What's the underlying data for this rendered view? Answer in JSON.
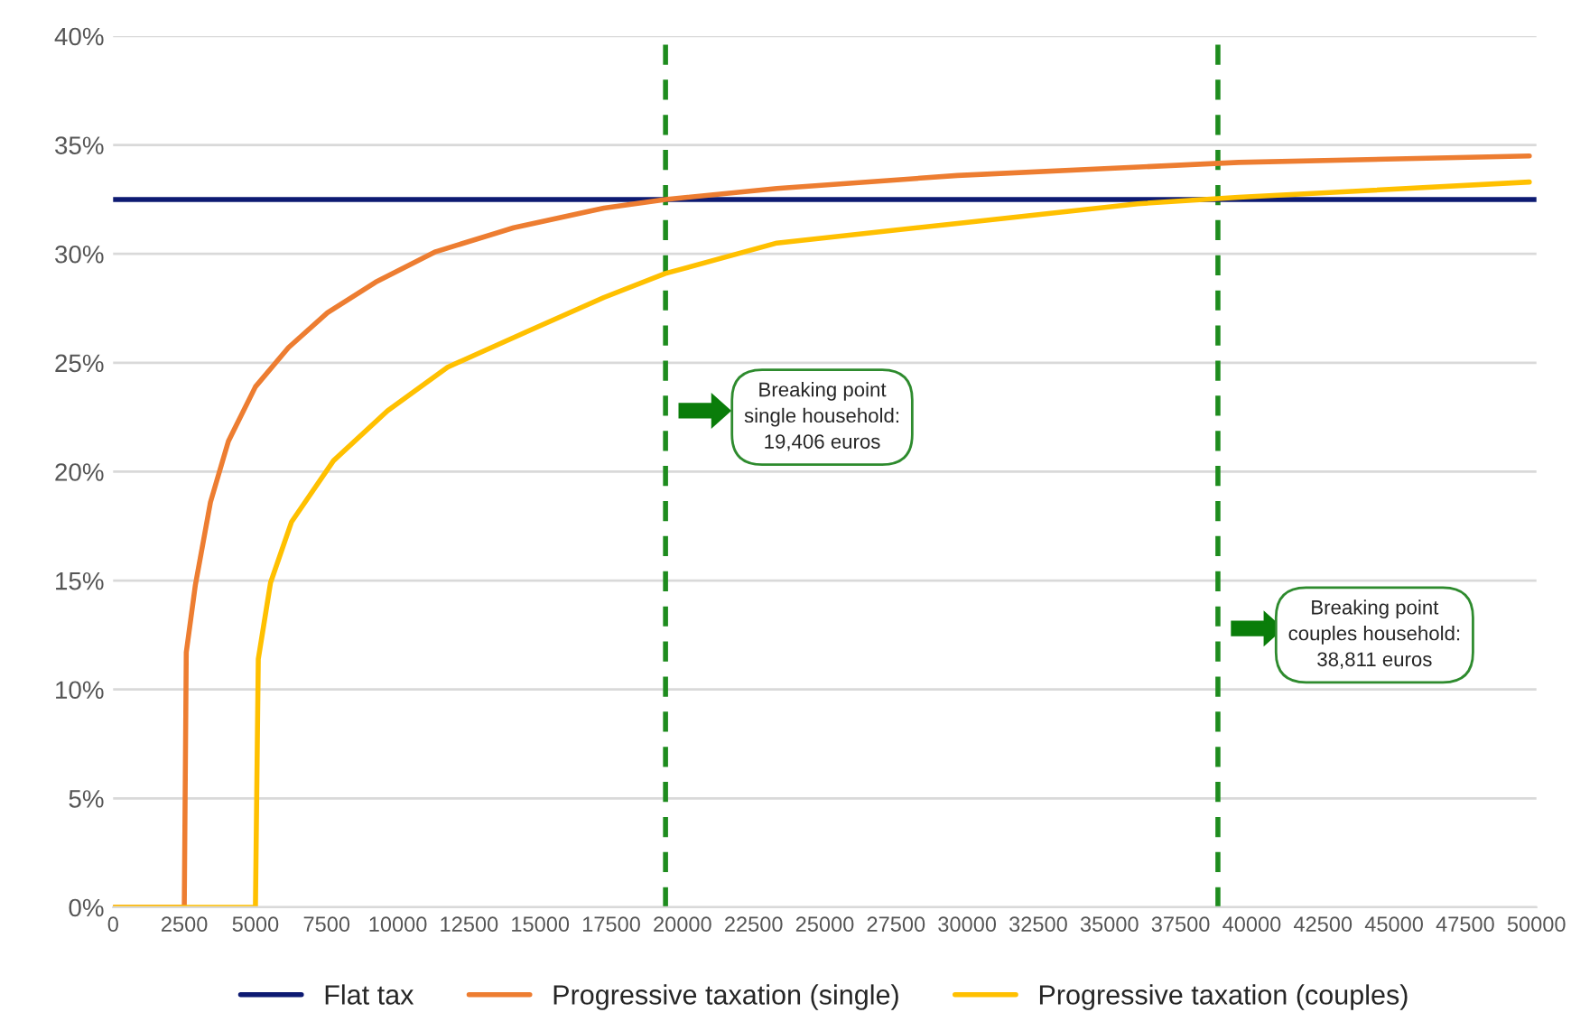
{
  "chart_data": {
    "type": "line",
    "xlim": [
      0,
      50000
    ],
    "xticks": [
      0,
      2500,
      5000,
      7500,
      10000,
      12500,
      15000,
      17500,
      20000,
      22500,
      25000,
      27500,
      30000,
      32500,
      35000,
      37500,
      40000,
      42500,
      45000,
      47500,
      50000
    ],
    "ylim": [
      0,
      40
    ],
    "yticks": [
      {
        "value": 0,
        "label": "0%"
      },
      {
        "value": 5,
        "label": "5%"
      },
      {
        "value": 10,
        "label": "10%"
      },
      {
        "value": 15,
        "label": "15%"
      },
      {
        "value": 20,
        "label": "20%"
      },
      {
        "value": 25,
        "label": "25%"
      },
      {
        "value": 30,
        "label": "30%"
      },
      {
        "value": 35,
        "label": "35%"
      },
      {
        "value": 40,
        "label": "40%"
      }
    ],
    "grid": "y",
    "legend": "bottom",
    "marker": "none",
    "line_style": "solid",
    "series": [
      {
        "name": "Flat tax",
        "color": "#0d1a72",
        "x": [
          0,
          50000
        ],
        "values": [
          32.5,
          32.5
        ]
      },
      {
        "name": "Progressive taxation (single)",
        "color": "#ed7d31",
        "x": [
          0,
          2500,
          2570,
          2890,
          3420,
          4050,
          5000,
          6160,
          7530,
          9220,
          11330,
          14070,
          17240,
          19400,
          23320,
          29660,
          39540,
          49750
        ],
        "values": [
          0,
          0,
          11.7,
          14.8,
          18.6,
          21.4,
          23.9,
          25.7,
          27.3,
          28.7,
          30.1,
          31.2,
          32.1,
          32.5,
          33.0,
          33.6,
          34.2,
          34.5
        ]
      },
      {
        "name": "Progressive taxation (couples)",
        "color": "#ffc000",
        "x": [
          0,
          5000,
          5100,
          5530,
          6270,
          7740,
          9640,
          11750,
          14490,
          17240,
          19400,
          23320,
          29660,
          35990,
          39540,
          49750
        ],
        "values": [
          0,
          0,
          11.4,
          14.9,
          17.7,
          20.5,
          22.8,
          24.8,
          26.4,
          28.0,
          29.1,
          30.5,
          31.4,
          32.3,
          32.6,
          33.3
        ]
      }
    ],
    "ref_lines": [
      {
        "axis": "x",
        "value": 19406,
        "color": "#1e8c1e",
        "line_style": "dashed"
      },
      {
        "axis": "x",
        "value": 38811,
        "color": "#1e8c1e",
        "line_style": "dashed"
      }
    ],
    "annotations": [
      "Breaking point\nsingle household:\n19,406 euros",
      "Breaking point\ncouples household:\n38,811 euros"
    ]
  }
}
